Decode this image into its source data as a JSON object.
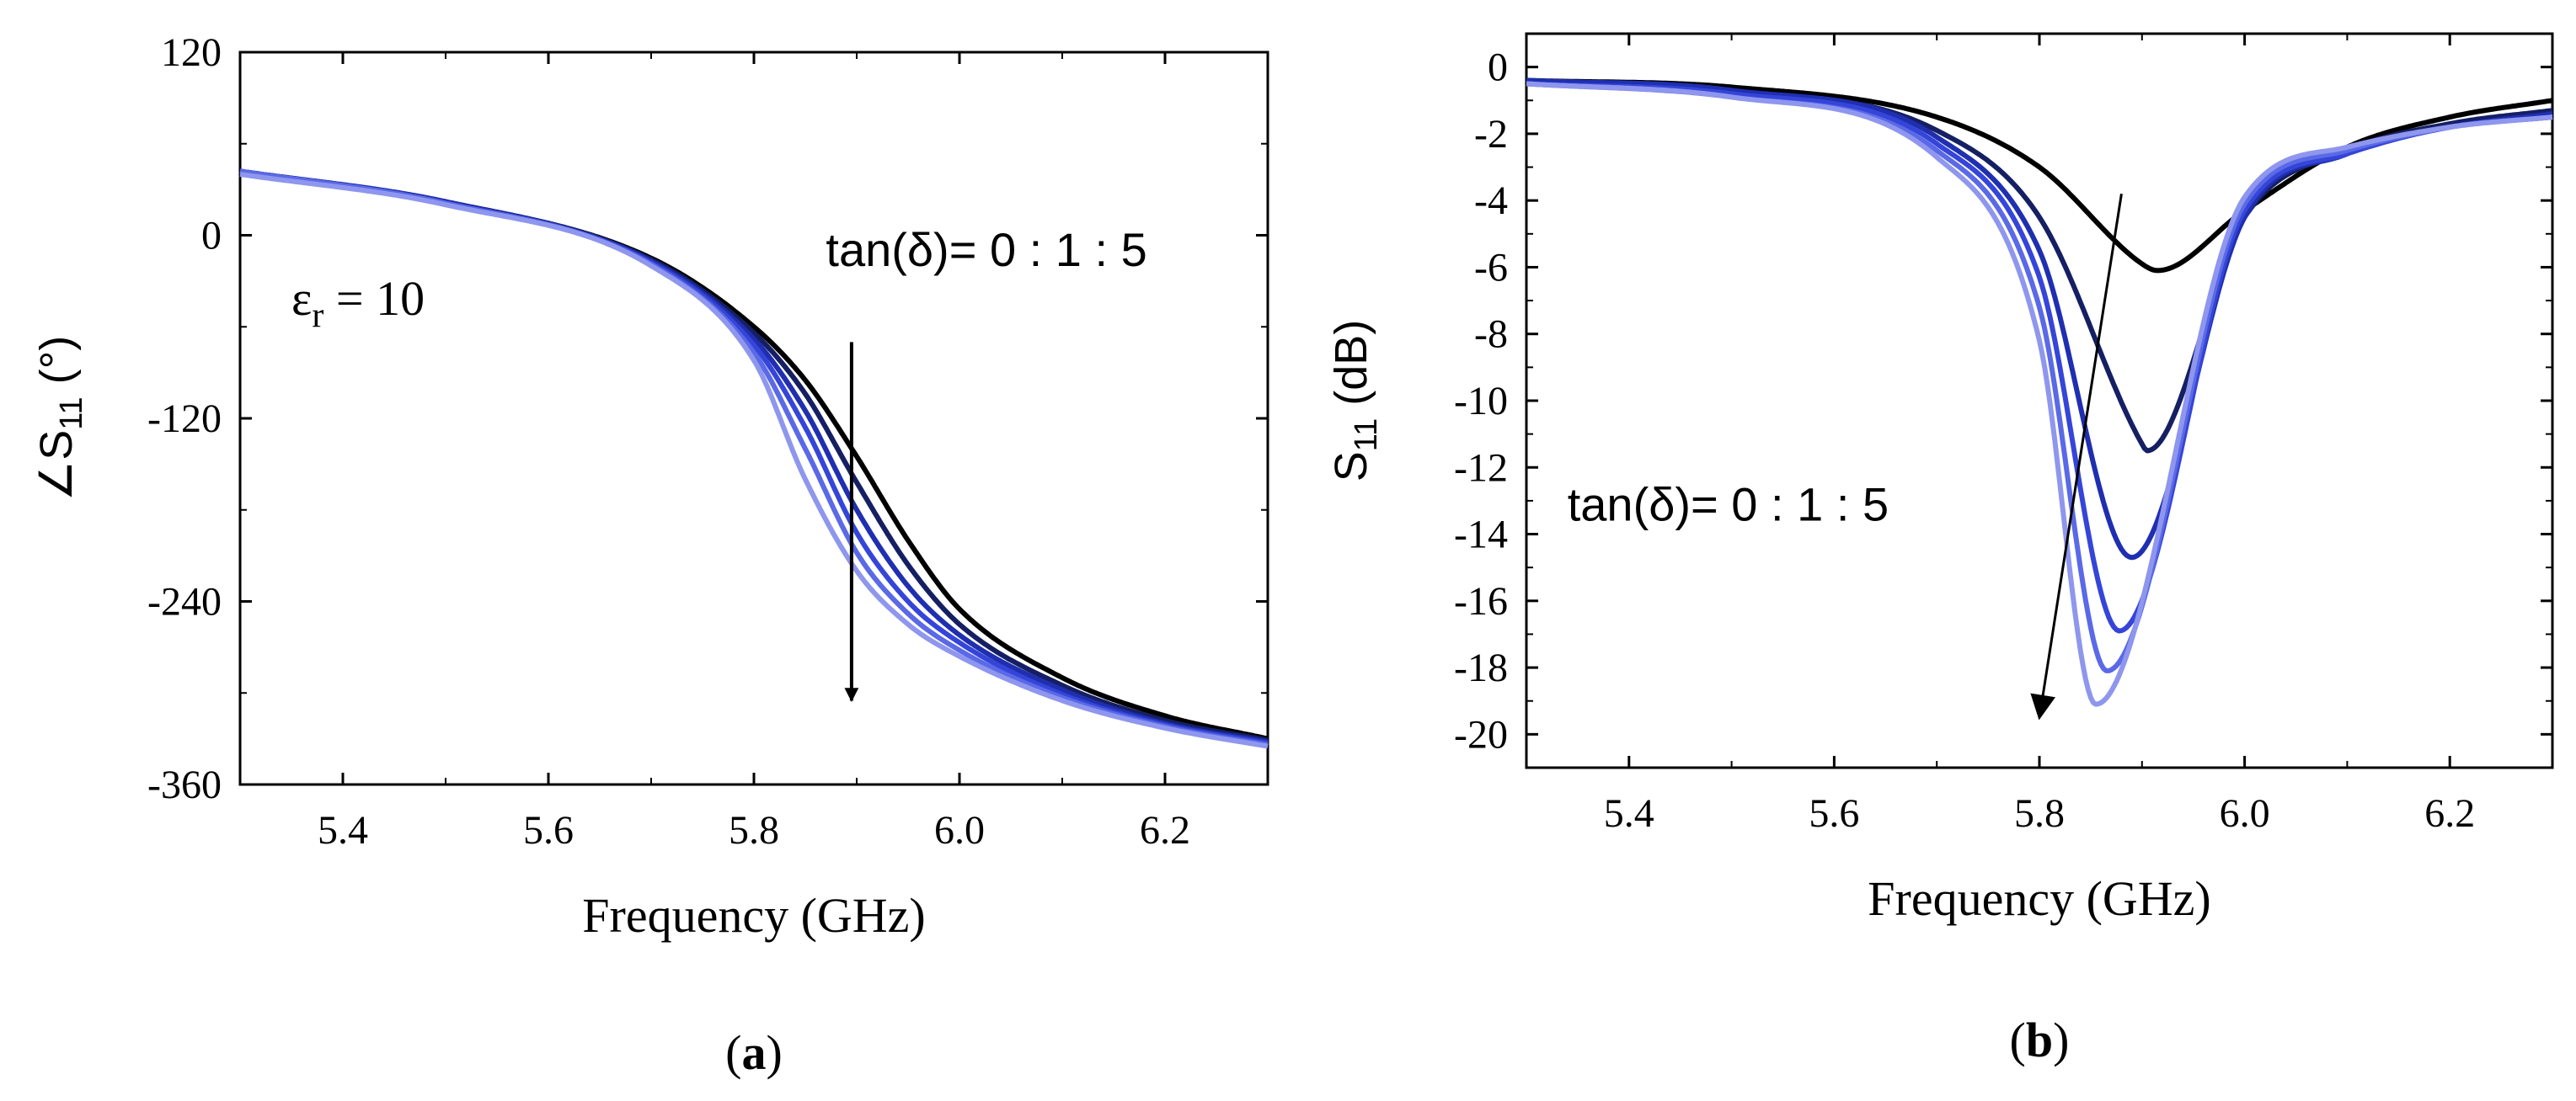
{
  "chart_data": [
    {
      "type": "line",
      "panel_label": "a",
      "xlabel": "Frequency (GHz)",
      "ylabel": "∠S11 (°)",
      "ylabel_parts": {
        "prefix": "∠S",
        "sub": "11",
        "suffix": " (°)"
      },
      "xlim": [
        5.3,
        6.3
      ],
      "ylim": [
        -360,
        120
      ],
      "xticks": [
        5.4,
        5.6,
        5.8,
        6.0,
        6.2
      ],
      "xtick_labels": [
        "5.4",
        "5.6",
        "5.8",
        "6.0",
        "6.2"
      ],
      "yticks": [
        -360,
        -240,
        -120,
        0,
        120
      ],
      "ytick_labels": [
        "-360",
        "-240",
        "-120",
        "0",
        "120"
      ],
      "annotations": [
        {
          "text": "tan(δ)= 0 : 1 : 5",
          "at": [
            5.87,
            -20
          ]
        },
        {
          "text_parts": {
            "main": "ε",
            "sub": "r",
            "rest": " = 10"
          },
          "at": [
            5.35,
            -52
          ]
        },
        {
          "type": "arrow",
          "from": [
            5.895,
            -70
          ],
          "to": [
            5.895,
            -305
          ]
        }
      ],
      "series": [
        {
          "name": "tan(δ)=0",
          "color": "#000000",
          "f0": 5.92,
          "x": [
            5.3,
            5.5,
            5.7,
            5.8,
            5.85,
            5.9,
            5.95,
            6.0,
            6.1,
            6.2,
            6.3
          ],
          "y": [
            42,
            22,
            -15,
            -60,
            -95,
            -145,
            -200,
            -245,
            -290,
            -315,
            -330
          ]
        },
        {
          "name": "tan(δ)=1",
          "color": "#151f63",
          "f0": 5.905,
          "x": [
            5.3,
            5.5,
            5.7,
            5.8,
            5.85,
            5.9,
            5.95,
            6.0,
            6.1,
            6.2,
            6.3
          ],
          "y": [
            42,
            22,
            -16,
            -64,
            -104,
            -162,
            -216,
            -255,
            -295,
            -318,
            -331
          ]
        },
        {
          "name": "tan(δ)=2",
          "color": "#1f2fb0",
          "f0": 5.89,
          "x": [
            5.3,
            5.5,
            5.7,
            5.8,
            5.85,
            5.9,
            5.95,
            6.0,
            6.1,
            6.2,
            6.3
          ],
          "y": [
            42,
            22,
            -17,
            -68,
            -115,
            -180,
            -230,
            -262,
            -298,
            -320,
            -332
          ]
        },
        {
          "name": "tan(δ)=3",
          "color": "#3545d9",
          "f0": 5.878,
          "x": [
            5.3,
            5.5,
            5.7,
            5.8,
            5.85,
            5.9,
            5.95,
            6.0,
            6.1,
            6.2,
            6.3
          ],
          "y": [
            42,
            21,
            -18,
            -72,
            -126,
            -195,
            -240,
            -267,
            -301,
            -321,
            -333
          ]
        },
        {
          "name": "tan(δ)=4",
          "color": "#5a69e6",
          "f0": 5.866,
          "x": [
            5.3,
            5.5,
            5.7,
            5.8,
            5.85,
            5.9,
            5.95,
            6.0,
            6.1,
            6.2,
            6.3
          ],
          "y": [
            42,
            21,
            -19,
            -77,
            -140,
            -208,
            -248,
            -272,
            -303,
            -322,
            -334
          ]
        },
        {
          "name": "tan(δ)=5",
          "color": "#8e96ee",
          "f0": 5.855,
          "x": [
            5.3,
            5.5,
            5.7,
            5.8,
            5.85,
            5.9,
            5.95,
            6.0,
            6.1,
            6.2,
            6.3
          ],
          "y": [
            40,
            20,
            -20,
            -82,
            -160,
            -220,
            -255,
            -276,
            -305,
            -323,
            -335
          ]
        }
      ]
    },
    {
      "type": "line",
      "panel_label": "b",
      "xlabel": "Frequency (GHz)",
      "ylabel": "S11 (dB)",
      "ylabel_parts": {
        "prefix": "S",
        "sub": "11",
        "suffix": " (dB)"
      },
      "xlim": [
        5.3,
        6.3
      ],
      "ylim": [
        -21,
        1
      ],
      "xticks": [
        5.4,
        5.6,
        5.8,
        6.0,
        6.2
      ],
      "xtick_labels": [
        "5.4",
        "5.6",
        "5.8",
        "6.0",
        "6.2"
      ],
      "yticks": [
        -20,
        -18,
        -16,
        -14,
        -12,
        -10,
        -8,
        -6,
        -4,
        -2,
        0
      ],
      "ytick_labels": [
        "-20",
        "-18",
        "-16",
        "-14",
        "-12",
        "-10",
        "-8",
        "-6",
        "-4",
        "-2",
        "0"
      ],
      "annotations": [
        {
          "text": "tan(δ)= 0 : 1 : 5",
          "at": [
            5.34,
            -13.6
          ]
        },
        {
          "type": "arrow",
          "from": [
            5.88,
            -3.8
          ],
          "to": [
            5.8,
            -19.5
          ]
        }
      ],
      "series": [
        {
          "name": "tan(δ)=0",
          "color": "#000000",
          "min": {
            "x": 5.915,
            "y": -6.1
          },
          "x": [
            5.3,
            5.5,
            5.7,
            5.8,
            5.9,
            5.915,
            6.0,
            6.1,
            6.2,
            6.3
          ],
          "y": [
            -0.4,
            -0.6,
            -1.5,
            -3.0,
            -5.9,
            -6.1,
            -4.3,
            -2.4,
            -1.5,
            -1.0
          ]
        },
        {
          "name": "tan(δ)=1",
          "color": "#151f63",
          "min": {
            "x": 5.905,
            "y": -11.5
          },
          "x": [
            5.3,
            5.5,
            5.7,
            5.8,
            5.9,
            5.905,
            6.0,
            6.1,
            6.2,
            6.3
          ],
          "y": [
            -0.4,
            -0.7,
            -1.9,
            -4.5,
            -11.3,
            -11.5,
            -4.5,
            -2.5,
            -1.7,
            -1.3
          ]
        },
        {
          "name": "tan(δ)=2",
          "color": "#1f2fb0",
          "min": {
            "x": 5.89,
            "y": -14.7
          },
          "x": [
            5.3,
            5.5,
            5.7,
            5.8,
            5.89,
            6.0,
            6.1,
            6.2,
            6.3
          ],
          "y": [
            -0.4,
            -0.7,
            -2.1,
            -5.5,
            -14.7,
            -4.5,
            -2.6,
            -1.8,
            -1.4
          ]
        },
        {
          "name": "tan(δ)=3",
          "color": "#3545d9",
          "min": {
            "x": 5.878,
            "y": -16.9
          },
          "x": [
            5.3,
            5.5,
            5.7,
            5.8,
            5.878,
            6.0,
            6.1,
            6.2,
            6.3
          ],
          "y": [
            -0.5,
            -0.8,
            -2.3,
            -6.3,
            -16.9,
            -4.3,
            -2.6,
            -1.8,
            -1.5
          ]
        },
        {
          "name": "tan(δ)=4",
          "color": "#5a69e6",
          "min": {
            "x": 5.866,
            "y": -18.1
          },
          "x": [
            5.3,
            5.5,
            5.7,
            5.8,
            5.866,
            6.0,
            6.1,
            6.2,
            6.3
          ],
          "y": [
            -0.5,
            -0.9,
            -2.5,
            -7.2,
            -18.1,
            -4.1,
            -2.5,
            -1.8,
            -1.5
          ]
        },
        {
          "name": "tan(δ)=5",
          "color": "#8e96ee",
          "min": {
            "x": 5.855,
            "y": -19.1
          },
          "x": [
            5.3,
            5.5,
            5.7,
            5.8,
            5.855,
            6.0,
            6.1,
            6.2,
            6.3
          ],
          "y": [
            -0.5,
            -0.9,
            -2.7,
            -8.2,
            -19.1,
            -3.9,
            -2.4,
            -1.8,
            -1.5
          ]
        }
      ]
    }
  ]
}
